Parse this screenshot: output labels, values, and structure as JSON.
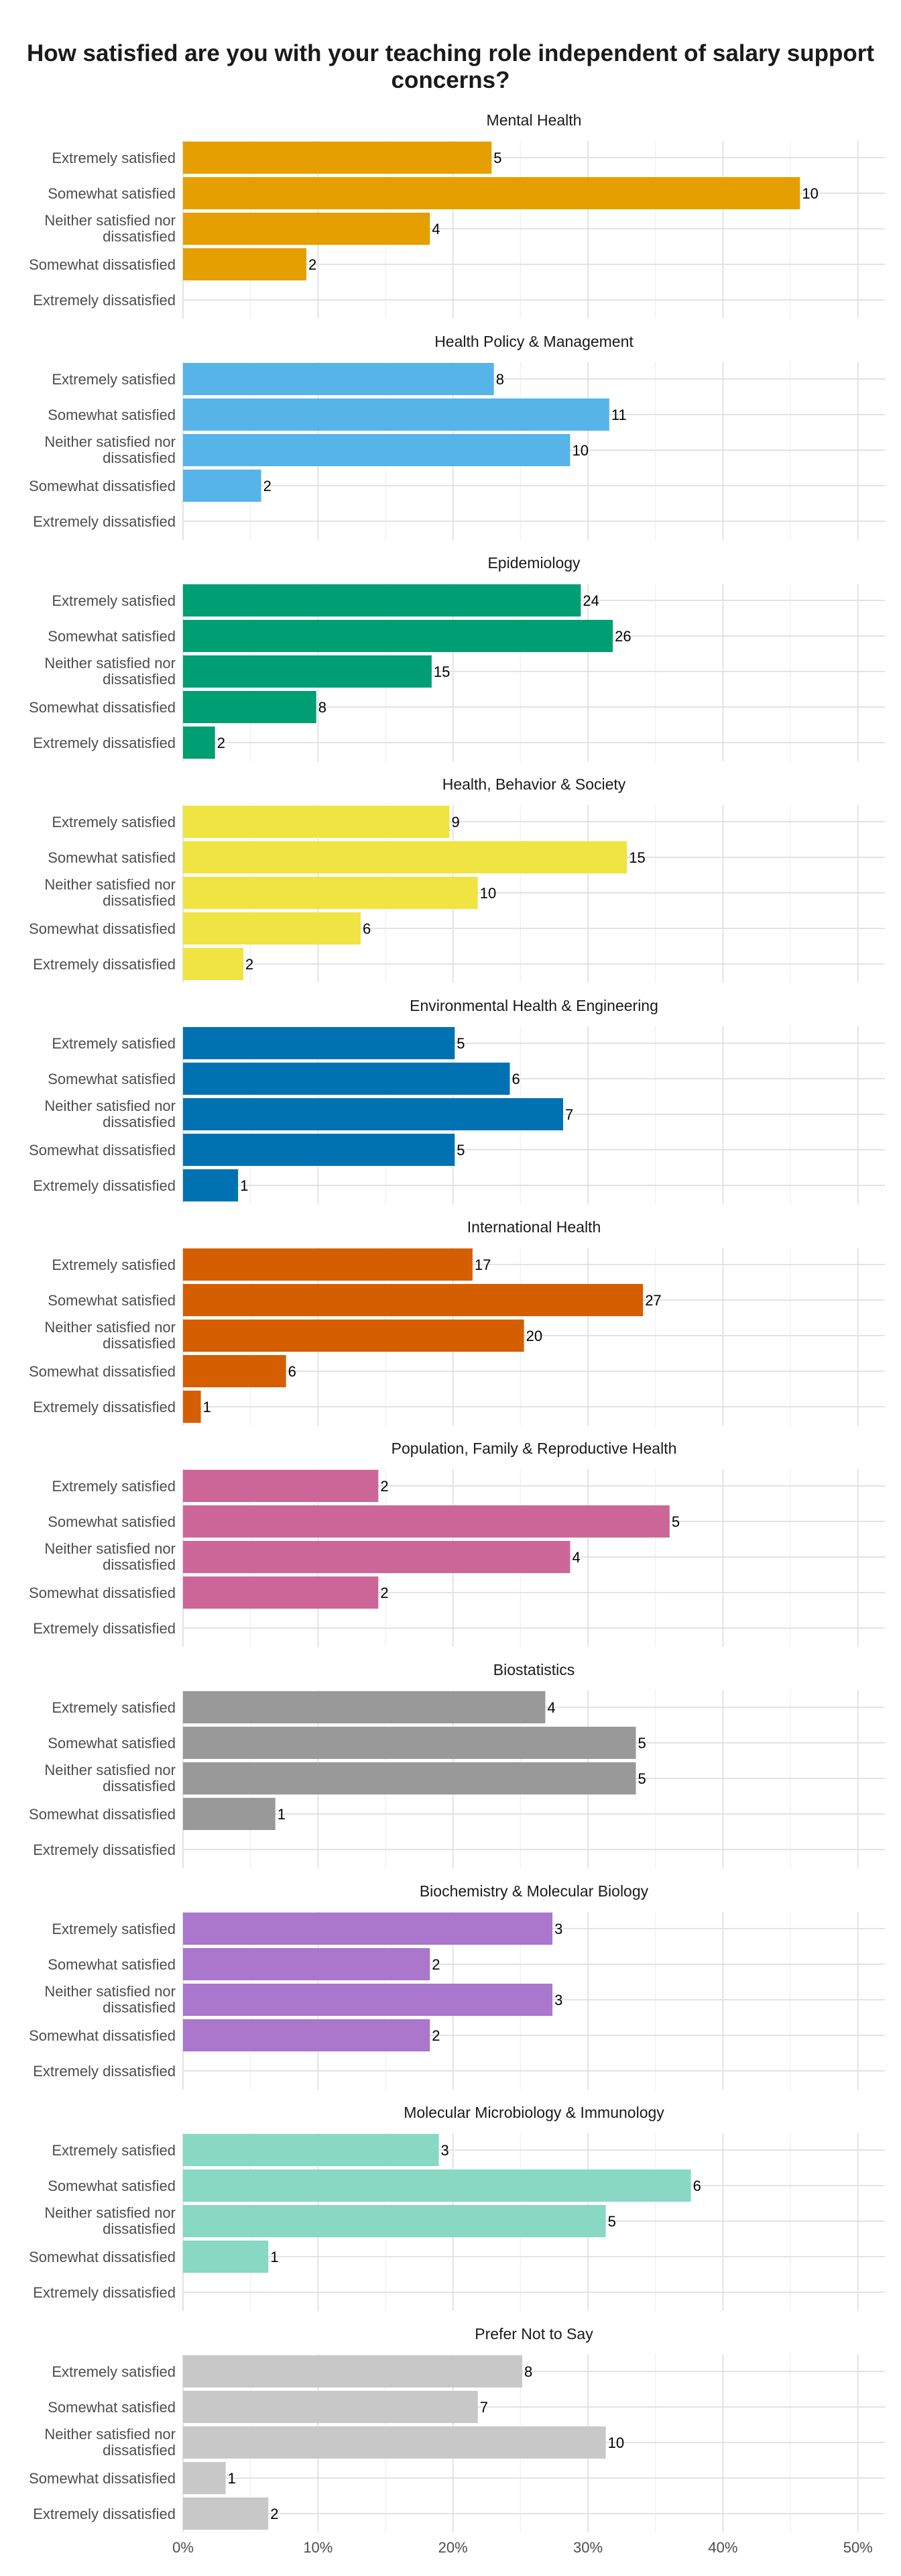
{
  "title": "How satisfied are you with your teaching role independent of salary support concerns?",
  "chart_data": {
    "type": "bar",
    "orientation": "horizontal",
    "title": "How satisfied are you with your teaching role independent of salary support concerns?",
    "categories": [
      "Extremely satisfied",
      "Somewhat satisfied",
      "Neither satisfied nor dissatisfied",
      "Somewhat dissatisfied",
      "Extremely dissatisfied"
    ],
    "category_lines": [
      [
        "Extremely satisfied"
      ],
      [
        "Somewhat satisfied"
      ],
      [
        "Neither satisfied nor",
        "dissatisfied"
      ],
      [
        "Somewhat dissatisfied"
      ],
      [
        "Extremely dissatisfied"
      ]
    ],
    "xlim": [
      0,
      0.52
    ],
    "x_ticks": [
      {
        "value": 0,
        "label": "0%"
      },
      {
        "value": 0.1,
        "label": "10%"
      },
      {
        "value": 0.2,
        "label": "20%"
      },
      {
        "value": 0.3,
        "label": "30%"
      },
      {
        "value": 0.4,
        "label": "40%"
      },
      {
        "value": 0.5,
        "label": "50%"
      }
    ],
    "grid": true,
    "legend": "none",
    "panels": [
      {
        "name": "Mental Health",
        "color": "#E69F00",
        "values": [
          0.2286,
          0.4571,
          0.1829,
          0.0914,
          null
        ],
        "counts": [
          5,
          10,
          4,
          2,
          null
        ]
      },
      {
        "name": "Health Policy & Management",
        "color": "#56B4E9",
        "values": [
          0.2303,
          0.3158,
          0.2868,
          0.0579,
          null
        ],
        "counts": [
          8,
          11,
          10,
          2,
          null
        ]
      },
      {
        "name": "Epidemiology",
        "color": "#009E73",
        "values": [
          0.2947,
          0.3184,
          0.1842,
          0.0987,
          0.0237
        ],
        "counts": [
          24,
          26,
          15,
          8,
          2
        ]
      },
      {
        "name": "Health, Behavior & Society",
        "color": "#F0E442",
        "values": [
          0.1974,
          0.3289,
          0.2184,
          0.1316,
          0.0447
        ],
        "counts": [
          9,
          15,
          10,
          6,
          2
        ]
      },
      {
        "name": "Environmental Health & Engineering",
        "color": "#0072B2",
        "values": [
          0.2013,
          0.2421,
          0.2816,
          0.2013,
          0.0408
        ],
        "counts": [
          5,
          6,
          7,
          5,
          1
        ]
      },
      {
        "name": "International Health",
        "color": "#D55E00",
        "values": [
          0.2145,
          0.3408,
          0.2526,
          0.0763,
          0.0132
        ],
        "counts": [
          17,
          27,
          20,
          6,
          1
        ]
      },
      {
        "name": "Population, Family & Reproductive Health",
        "color": "#CC6699",
        "values": [
          0.1447,
          0.3605,
          0.2868,
          0.1447,
          null
        ],
        "counts": [
          2,
          5,
          4,
          2,
          null
        ]
      },
      {
        "name": "Biostatistics",
        "color": "#999999",
        "values": [
          0.2684,
          0.3355,
          0.3355,
          0.0684,
          null
        ],
        "counts": [
          4,
          5,
          5,
          1,
          null
        ]
      },
      {
        "name": "Biochemistry & Molecular Biology",
        "color": "#AA77CC",
        "values": [
          0.2737,
          0.1829,
          0.2737,
          0.1829,
          null
        ],
        "counts": [
          3,
          2,
          3,
          2,
          null
        ]
      },
      {
        "name": "Molecular Microbiology & Immunology",
        "color": "#88D8C4",
        "values": [
          0.1895,
          0.3763,
          0.3132,
          0.0632,
          null
        ],
        "counts": [
          3,
          6,
          5,
          1,
          null
        ]
      },
      {
        "name": "Prefer Not to Say",
        "color": "#C8C8C8",
        "values": [
          0.2513,
          0.2184,
          0.3132,
          0.0316,
          0.0632
        ],
        "counts": [
          8,
          7,
          10,
          1,
          2
        ]
      }
    ]
  }
}
